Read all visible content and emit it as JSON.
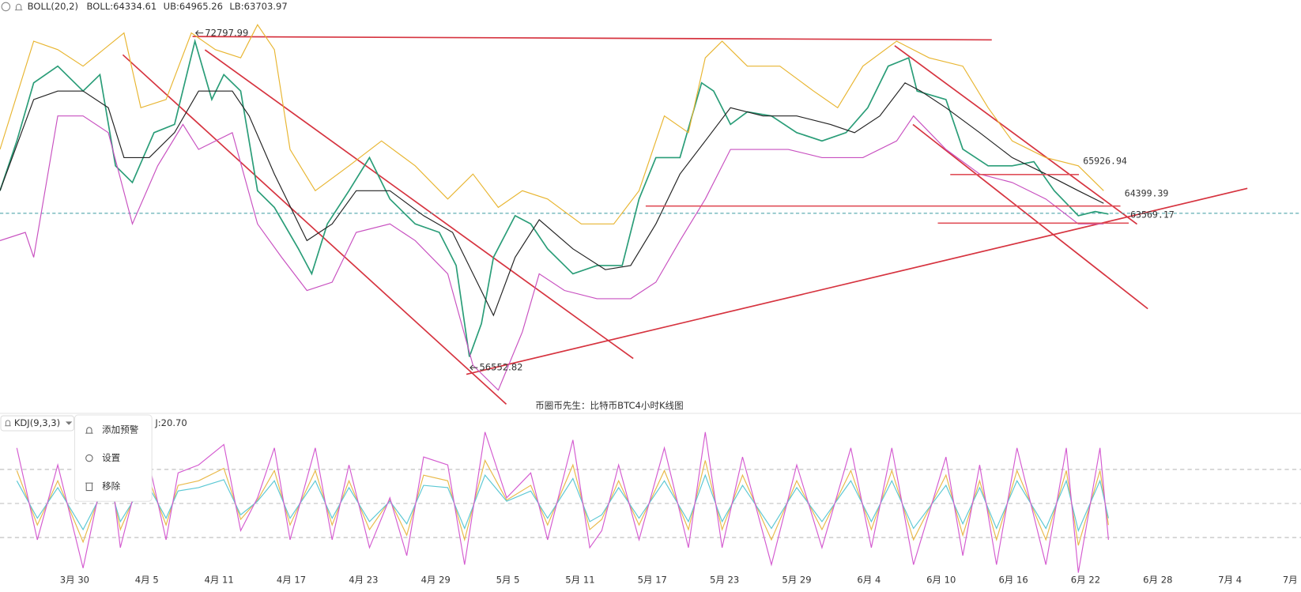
{
  "chart_data": [
    {
      "type": "line",
      "indicator": "BOLL(20,2)",
      "legend": [
        "BOLL:64334.61",
        "UB:64965.26",
        "LB:63703.97"
      ],
      "annotation": "币圈币先生：比特币BTC4小时K线图",
      "xlim": [
        -6.2,
        101.9
      ],
      "ylim": [
        55400,
        74400
      ],
      "xticks": [
        {
          "value": 0,
          "label": "3月 30"
        },
        {
          "value": 6,
          "label": "4月 5"
        },
        {
          "value": 12,
          "label": "4月 11"
        },
        {
          "value": 18,
          "label": "4月 17"
        },
        {
          "value": 24,
          "label": "4月 23"
        },
        {
          "value": 30,
          "label": "4月 29"
        },
        {
          "value": 36,
          "label": "5月 5"
        },
        {
          "value": 42,
          "label": "5月 11"
        },
        {
          "value": 48,
          "label": "5月 17"
        },
        {
          "value": 54,
          "label": "5月 23"
        },
        {
          "value": 60,
          "label": "5月 29"
        },
        {
          "value": 66,
          "label": "6月 4"
        },
        {
          "value": 72,
          "label": "6月 10"
        },
        {
          "value": 78,
          "label": "6月 16"
        },
        {
          "value": 84,
          "label": "6月 22"
        },
        {
          "value": 90,
          "label": "6月 28"
        },
        {
          "value": 96,
          "label": "7月 4"
        },
        {
          "value": 101,
          "label": "7月"
        }
      ],
      "high": {
        "x": 10.0,
        "value": 72797.99
      },
      "low": {
        "x": 32.8,
        "value": 56552.82
      },
      "levels": [
        65926.94,
        64399.39,
        63569.17
      ],
      "series": [
        {
          "color": "#222222",
          "x": [
            -6.2,
            -3.4,
            -1.4,
            0.7,
            2.8,
            4.1,
            6.2,
            8.3,
            10.3,
            13.1,
            14.5,
            16.6,
            19.3,
            21.4,
            23.4,
            26.2,
            29.0,
            31.4,
            33.1,
            34.8,
            36.6,
            38.6,
            41.4,
            44.1,
            46.2,
            48.3,
            50.3,
            52.4,
            54.5,
            57.2,
            60.0,
            62.8,
            64.8,
            66.9,
            69.0,
            70.3,
            72.4,
            75.2,
            77.9,
            80.7,
            83.4,
            85.5
          ],
          "values": [
            65140,
            69570,
            69980,
            69980,
            69170,
            66750,
            66750,
            67960,
            69980,
            69980,
            68770,
            65950,
            62720,
            63530,
            65140,
            65140,
            63930,
            63120,
            61110,
            59090,
            61910,
            63730,
            62320,
            61310,
            61510,
            63530,
            65950,
            67560,
            69170,
            68770,
            68770,
            68360,
            67960,
            68770,
            70380,
            69980,
            69170,
            67960,
            66750,
            65950,
            65140,
            64530
          ]
        },
        {
          "color": "#e8b530",
          "x": [
            -6.2,
            -3.4,
            -1.4,
            0.7,
            4.1,
            5.5,
            7.6,
            9.7,
            11.7,
            13.8,
            15.2,
            16.6,
            17.9,
            20.0,
            22.8,
            25.5,
            28.3,
            31.0,
            33.1,
            35.2,
            37.2,
            39.3,
            42.1,
            44.8,
            46.9,
            49.0,
            51.0,
            52.4,
            53.8,
            55.9,
            58.6,
            61.4,
            63.4,
            65.5,
            68.3,
            71.0,
            73.8,
            75.9,
            77.9,
            80.7,
            83.4,
            85.5
          ],
          "values": [
            67150,
            72400,
            71990,
            71190,
            72800,
            69170,
            69570,
            72800,
            71990,
            71590,
            73200,
            71990,
            67150,
            65140,
            66350,
            67560,
            66350,
            64740,
            65950,
            64330,
            65140,
            64740,
            63530,
            63530,
            65140,
            68770,
            67960,
            71590,
            72400,
            71190,
            71190,
            69980,
            69170,
            71190,
            72400,
            71590,
            71190,
            69170,
            67560,
            66750,
            66350,
            65140
          ]
        },
        {
          "color": "#c850c0",
          "x": [
            -6.2,
            -4.1,
            -3.4,
            -1.4,
            0.7,
            2.8,
            4.8,
            6.9,
            9.0,
            10.3,
            13.1,
            15.2,
            17.2,
            19.3,
            21.4,
            23.4,
            26.2,
            28.3,
            31.0,
            33.1,
            35.2,
            37.2,
            38.6,
            40.7,
            43.4,
            46.2,
            48.3,
            50.3,
            52.4,
            54.5,
            57.2,
            59.3,
            62.1,
            65.5,
            68.3,
            69.7,
            72.4,
            75.2,
            77.9,
            80.7,
            83.4,
            85.5
          ],
          "values": [
            62720,
            63120,
            61910,
            68770,
            68770,
            67960,
            63530,
            66350,
            68360,
            67150,
            67960,
            63530,
            61910,
            60300,
            60700,
            63120,
            63530,
            62720,
            61110,
            56670,
            55460,
            58290,
            61110,
            60300,
            59900,
            59900,
            60700,
            62720,
            64740,
            67150,
            67150,
            67150,
            66750,
            66750,
            67560,
            68770,
            67150,
            65950,
            65540,
            64740,
            63530,
            63530
          ]
        },
        {
          "color": "#2a9d78",
          "x": [
            -6.2,
            -4.8,
            -3.4,
            -1.4,
            0.7,
            2.1,
            3.4,
            4.8,
            6.6,
            8.3,
            10.0,
            11.4,
            12.4,
            13.8,
            15.2,
            16.6,
            18.6,
            19.7,
            21.0,
            22.8,
            24.5,
            26.2,
            28.3,
            30.3,
            31.7,
            32.8,
            33.8,
            34.8,
            36.6,
            37.9,
            39.3,
            41.4,
            43.4,
            45.5,
            46.9,
            48.3,
            50.3,
            52.1,
            53.1,
            54.5,
            55.9,
            57.9,
            60.0,
            62.1,
            64.1,
            65.9,
            67.6,
            69.3,
            70.0,
            72.4,
            73.8,
            75.9,
            77.9,
            79.7,
            81.4,
            83.4,
            84.8,
            85.9
          ],
          "values": [
            65140,
            67560,
            70380,
            71190,
            69980,
            70780,
            66350,
            65540,
            67960,
            68360,
            72400,
            69570,
            70780,
            69980,
            65140,
            64330,
            62320,
            61110,
            63530,
            65140,
            66750,
            64740,
            63530,
            63120,
            61510,
            57080,
            58690,
            61910,
            63930,
            63530,
            62320,
            61110,
            61510,
            61510,
            64740,
            66750,
            66750,
            70380,
            69980,
            68360,
            68970,
            68770,
            67960,
            67560,
            67960,
            69170,
            71190,
            71590,
            69980,
            69570,
            67160,
            66350,
            66350,
            66550,
            65140,
            63930,
            64130,
            64010
          ]
        }
      ]
    },
    {
      "type": "line",
      "indicator": "KDJ(9,3,3)",
      "legend": [
        "J:20.70"
      ],
      "xlim": [
        -6.2,
        101.9
      ],
      "ylim": [
        -20,
        120
      ],
      "levels": [
        20,
        50,
        80
      ],
      "x": [
        -4.8,
        -3.1,
        -1.4,
        0.7,
        2.8,
        3.8,
        5.9,
        7.6,
        8.6,
        10.3,
        12.4,
        13.8,
        15.2,
        16.6,
        17.9,
        20.0,
        21.4,
        22.8,
        24.5,
        26.2,
        27.6,
        29.0,
        31.0,
        32.4,
        34.1,
        35.9,
        37.9,
        39.3,
        41.4,
        42.8,
        43.8,
        45.2,
        46.9,
        49.0,
        51.0,
        52.4,
        53.8,
        55.5,
        57.9,
        60.0,
        62.1,
        64.5,
        66.2,
        67.9,
        69.7,
        72.4,
        73.8,
        75.2,
        76.6,
        78.3,
        80.7,
        82.4,
        83.4,
        85.2,
        85.9
      ],
      "series": [
        {
          "color": "#d45bd0",
          "values": [
            99,
            18,
            84,
            -7,
            99,
            11,
            99,
            18,
            77,
            84,
            102,
            26,
            55,
            99,
            18,
            99,
            18,
            84,
            11,
            55,
            4,
            91,
            84,
            -4,
            113,
            55,
            77,
            18,
            106,
            11,
            26,
            84,
            18,
            99,
            11,
            113,
            11,
            91,
            -4,
            84,
            11,
            99,
            11,
            99,
            -4,
            91,
            4,
            84,
            -4,
            99,
            -4,
            99,
            -11,
            99,
            18
          ]
        },
        {
          "color": "#e9b949",
          "values": [
            79,
            31,
            70,
            16,
            79,
            27,
            79,
            31,
            66,
            70,
            81,
            36,
            53,
            79,
            31,
            79,
            31,
            70,
            27,
            53,
            22,
            75,
            70,
            18,
            88,
            53,
            66,
            31,
            84,
            27,
            36,
            70,
            31,
            79,
            27,
            88,
            27,
            75,
            18,
            70,
            27,
            79,
            27,
            79,
            18,
            75,
            22,
            70,
            18,
            79,
            18,
            79,
            13,
            79,
            31
          ]
        },
        {
          "color": "#5bc8d4",
          "values": [
            70,
            37,
            64,
            27,
            70,
            34,
            70,
            37,
            61,
            64,
            71,
            40,
            52,
            70,
            37,
            70,
            37,
            64,
            34,
            52,
            32,
            66,
            64,
            28,
            75,
            52,
            61,
            37,
            72,
            34,
            40,
            64,
            37,
            70,
            34,
            75,
            34,
            66,
            28,
            64,
            34,
            70,
            34,
            70,
            28,
            66,
            32,
            64,
            28,
            70,
            28,
            70,
            26,
            70,
            37
          ]
        }
      ]
    }
  ],
  "menu": [
    "添加预警",
    "设置",
    "移除"
  ]
}
